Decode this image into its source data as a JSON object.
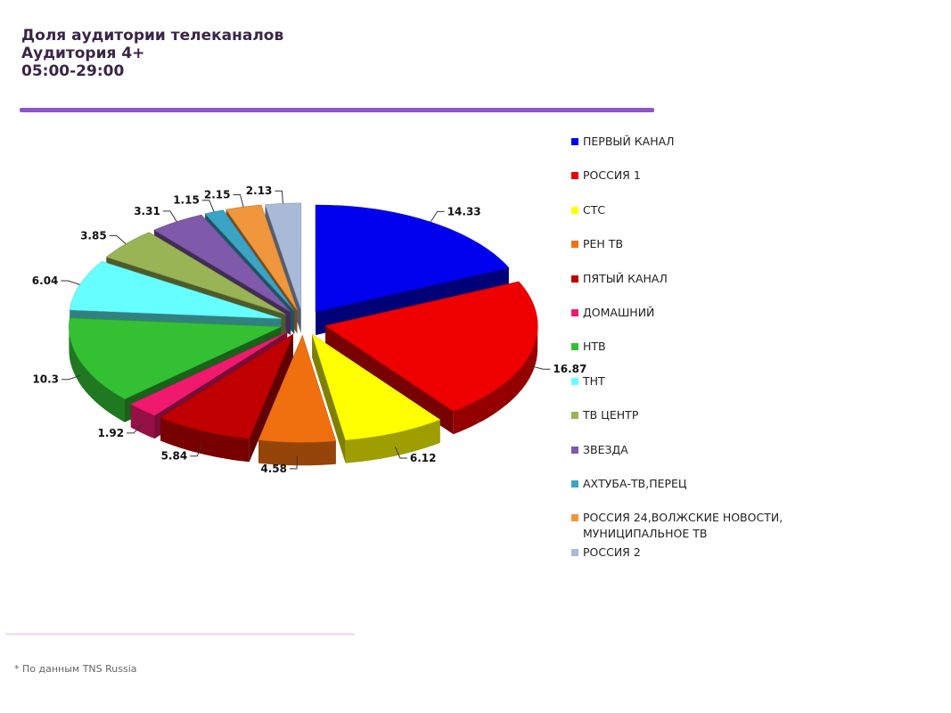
{
  "header": {
    "title_line1": "Доля аудитории телеканалов",
    "title_line2": "Аудитория 4+",
    "title_line3": "05:00-29:00"
  },
  "footnote": "* По данным TNS Russia",
  "colors": {
    "accent_rule": "#8f55c6"
  },
  "chart_data": {
    "type": "pie",
    "style": "3d-exploded",
    "legend_position": "right",
    "series": [
      {
        "name": "ПЕРВЫЙ КАНАЛ",
        "value": 14.33,
        "label": "14.33",
        "color": "#0000ee"
      },
      {
        "name": "РОССИЯ 1",
        "value": 16.87,
        "label": "16.87",
        "color": "#ee0000"
      },
      {
        "name": "СТС",
        "value": 6.12,
        "label": "6.12",
        "color": "#ffff00"
      },
      {
        "name": "РЕН ТВ",
        "value": 4.58,
        "label": "4.58",
        "color": "#f07010"
      },
      {
        "name": "ПЯТЫЙ КАНАЛ",
        "value": 5.84,
        "label": "5.84",
        "color": "#c00000"
      },
      {
        "name": "ДОМАШНИЙ",
        "value": 1.92,
        "label": "1.92",
        "color": "#f0196e"
      },
      {
        "name": "НТВ",
        "value": 10.3,
        "label": "10.3",
        "color": "#33c133"
      },
      {
        "name": "ТНТ",
        "value": 6.04,
        "label": "6.04",
        "color": "#66ffff"
      },
      {
        "name": "ТВ ЦЕНТР",
        "value": 3.85,
        "label": "3.85",
        "color": "#99b455"
      },
      {
        "name": "ЗВЕЗДА",
        "value": 3.31,
        "label": "3.31",
        "color": "#7f5aaa"
      },
      {
        "name": "АХТУБА-ТВ,ПЕРЕЦ",
        "value": 1.15,
        "label": "1.15",
        "color": "#3ba3c3"
      },
      {
        "name": "РОССИЯ 24,ВОЛЖСКИЕ НОВОСТИ,\nМУНИЦИПАЛЬНОЕ ТВ",
        "value": 2.15,
        "label": "2.15",
        "color": "#f0963c"
      },
      {
        "name": "РОССИЯ 2",
        "value": 2.13,
        "label": "2.13",
        "color": "#a9b9d8"
      }
    ]
  }
}
